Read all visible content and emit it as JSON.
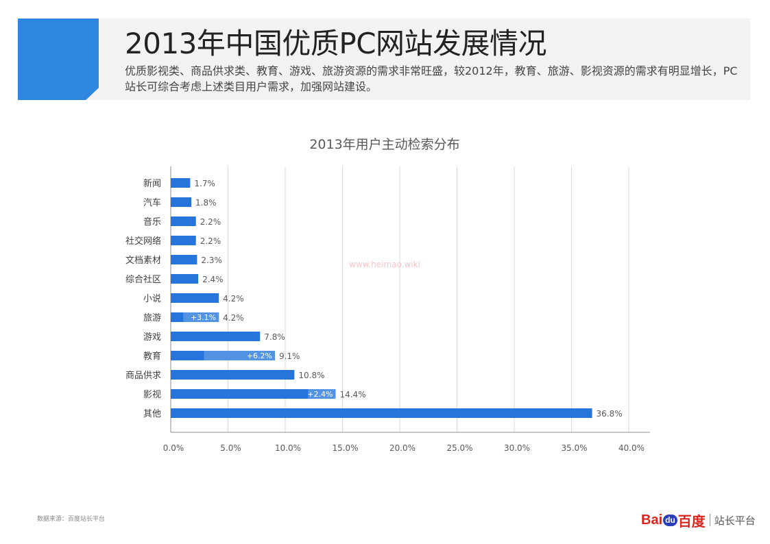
{
  "header": {
    "title": "2013年中国优质PC网站发展情况",
    "subtitle": "优质影视类、商品供求类、教育、游戏、旅游资源的需求非常旺盛，较2012年，教育、旅游、影视资源的需求有明显增长，PC站长可综合考虑上述类目用户需求，加强网站建设。"
  },
  "colors": {
    "accent": "#2e86de",
    "bar": "#2575dc",
    "bar_increase": "#5294e3",
    "grid": "#d9d9d9"
  },
  "chart_data": {
    "type": "bar",
    "orientation": "horizontal",
    "title": "2013年用户主动检索分布",
    "categories": [
      "新闻",
      "汽车",
      "音乐",
      "社交网络",
      "文档素材",
      "综合社区",
      "小说",
      "旅游",
      "游戏",
      "教育",
      "商品供求",
      "影视",
      "其他"
    ],
    "values": [
      1.7,
      1.8,
      2.2,
      2.2,
      2.3,
      2.4,
      4.2,
      4.2,
      7.8,
      9.1,
      10.8,
      14.4,
      36.8
    ],
    "value_labels": [
      "1.7%",
      "1.8%",
      "2.2%",
      "2.2%",
      "2.3%",
      "2.4%",
      "4.2%",
      "4.2%",
      "7.8%",
      "9.1%",
      "10.8%",
      "14.4%",
      "36.8%"
    ],
    "increase_vs_2012": [
      null,
      null,
      null,
      null,
      null,
      null,
      null,
      3.1,
      null,
      6.2,
      null,
      2.4,
      null
    ],
    "increase_labels": [
      "",
      "",
      "",
      "",
      "",
      "",
      "",
      "+3.1%",
      "",
      "+6.2%",
      "",
      "+2.4%",
      ""
    ],
    "xlim": [
      0,
      40
    ],
    "xticks": [
      0,
      5,
      10,
      15,
      20,
      25,
      30,
      35,
      40
    ],
    "xtick_labels": [
      "0.0%",
      "5.0%",
      "10.0%",
      "15.0%",
      "20.0%",
      "25.0%",
      "30.0%",
      "35.0%",
      "40.0%"
    ],
    "grid": true,
    "xlabel": "",
    "ylabel": ""
  },
  "watermark": "www.heimao.wiki",
  "footer": {
    "source": "数据来源：百度站长平台",
    "brand_bai": "Bai",
    "brand_du": "du",
    "brand_baidu": "百度",
    "brand_platform": "站长平台"
  }
}
